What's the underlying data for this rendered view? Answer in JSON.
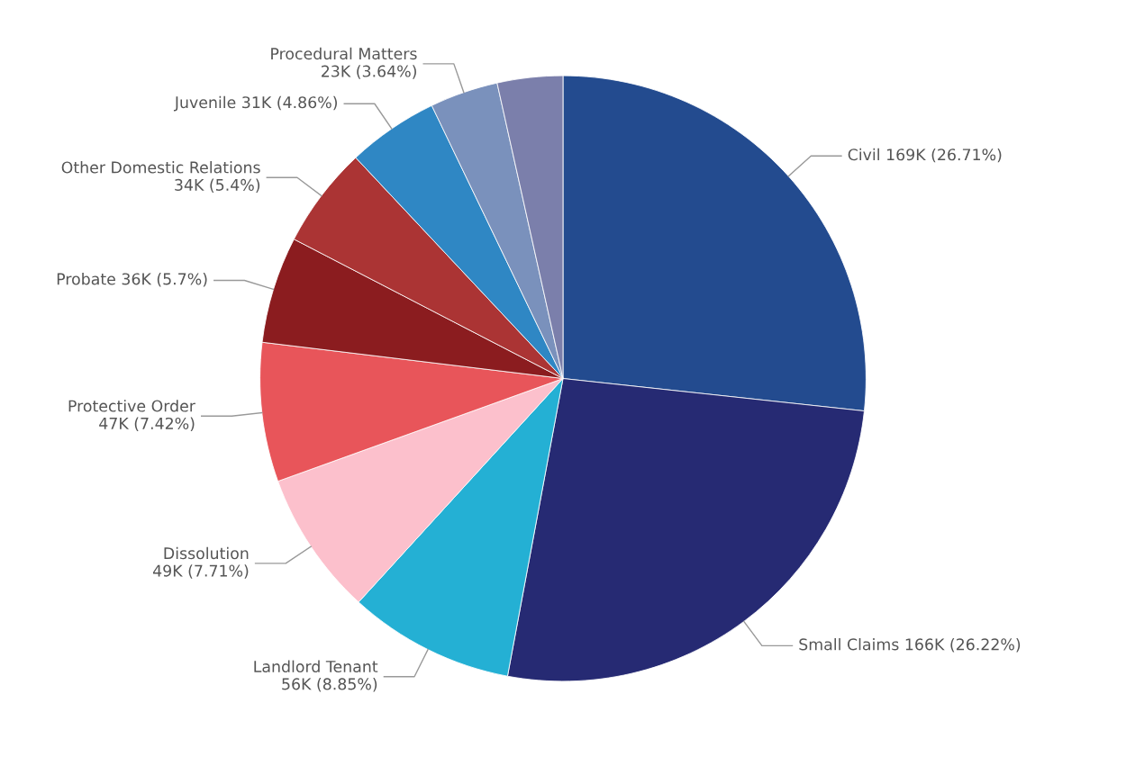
{
  "chart_data": {
    "type": "pie",
    "categories": [
      "Civil",
      "Small Claims",
      "Landlord Tenant",
      "Dissolution",
      "Protective Order",
      "Probate",
      "Other Domestic Relations",
      "Juvenile",
      "Procedural Matters",
      null
    ],
    "values": [
      26.71,
      26.22,
      8.85,
      7.71,
      7.42,
      5.7,
      5.4,
      4.86,
      3.64,
      3.49
    ],
    "value_labels": [
      "169K (26.71%)",
      "166K (26.22%)",
      "56K (8.85%)",
      "49K (7.71%)",
      "47K (7.42%)",
      "36K (5.7%)",
      "34K (5.4%)",
      "31K (4.86%)",
      "23K (3.64%)",
      null
    ],
    "colors": [
      "#234b8f",
      "#262a73",
      "#24b0d4",
      "#fcc0cc",
      "#e8555a",
      "#8b1c1f",
      "#ab3434",
      "#2f87c4",
      "#7a91bc",
      "#7b7fab"
    ]
  }
}
